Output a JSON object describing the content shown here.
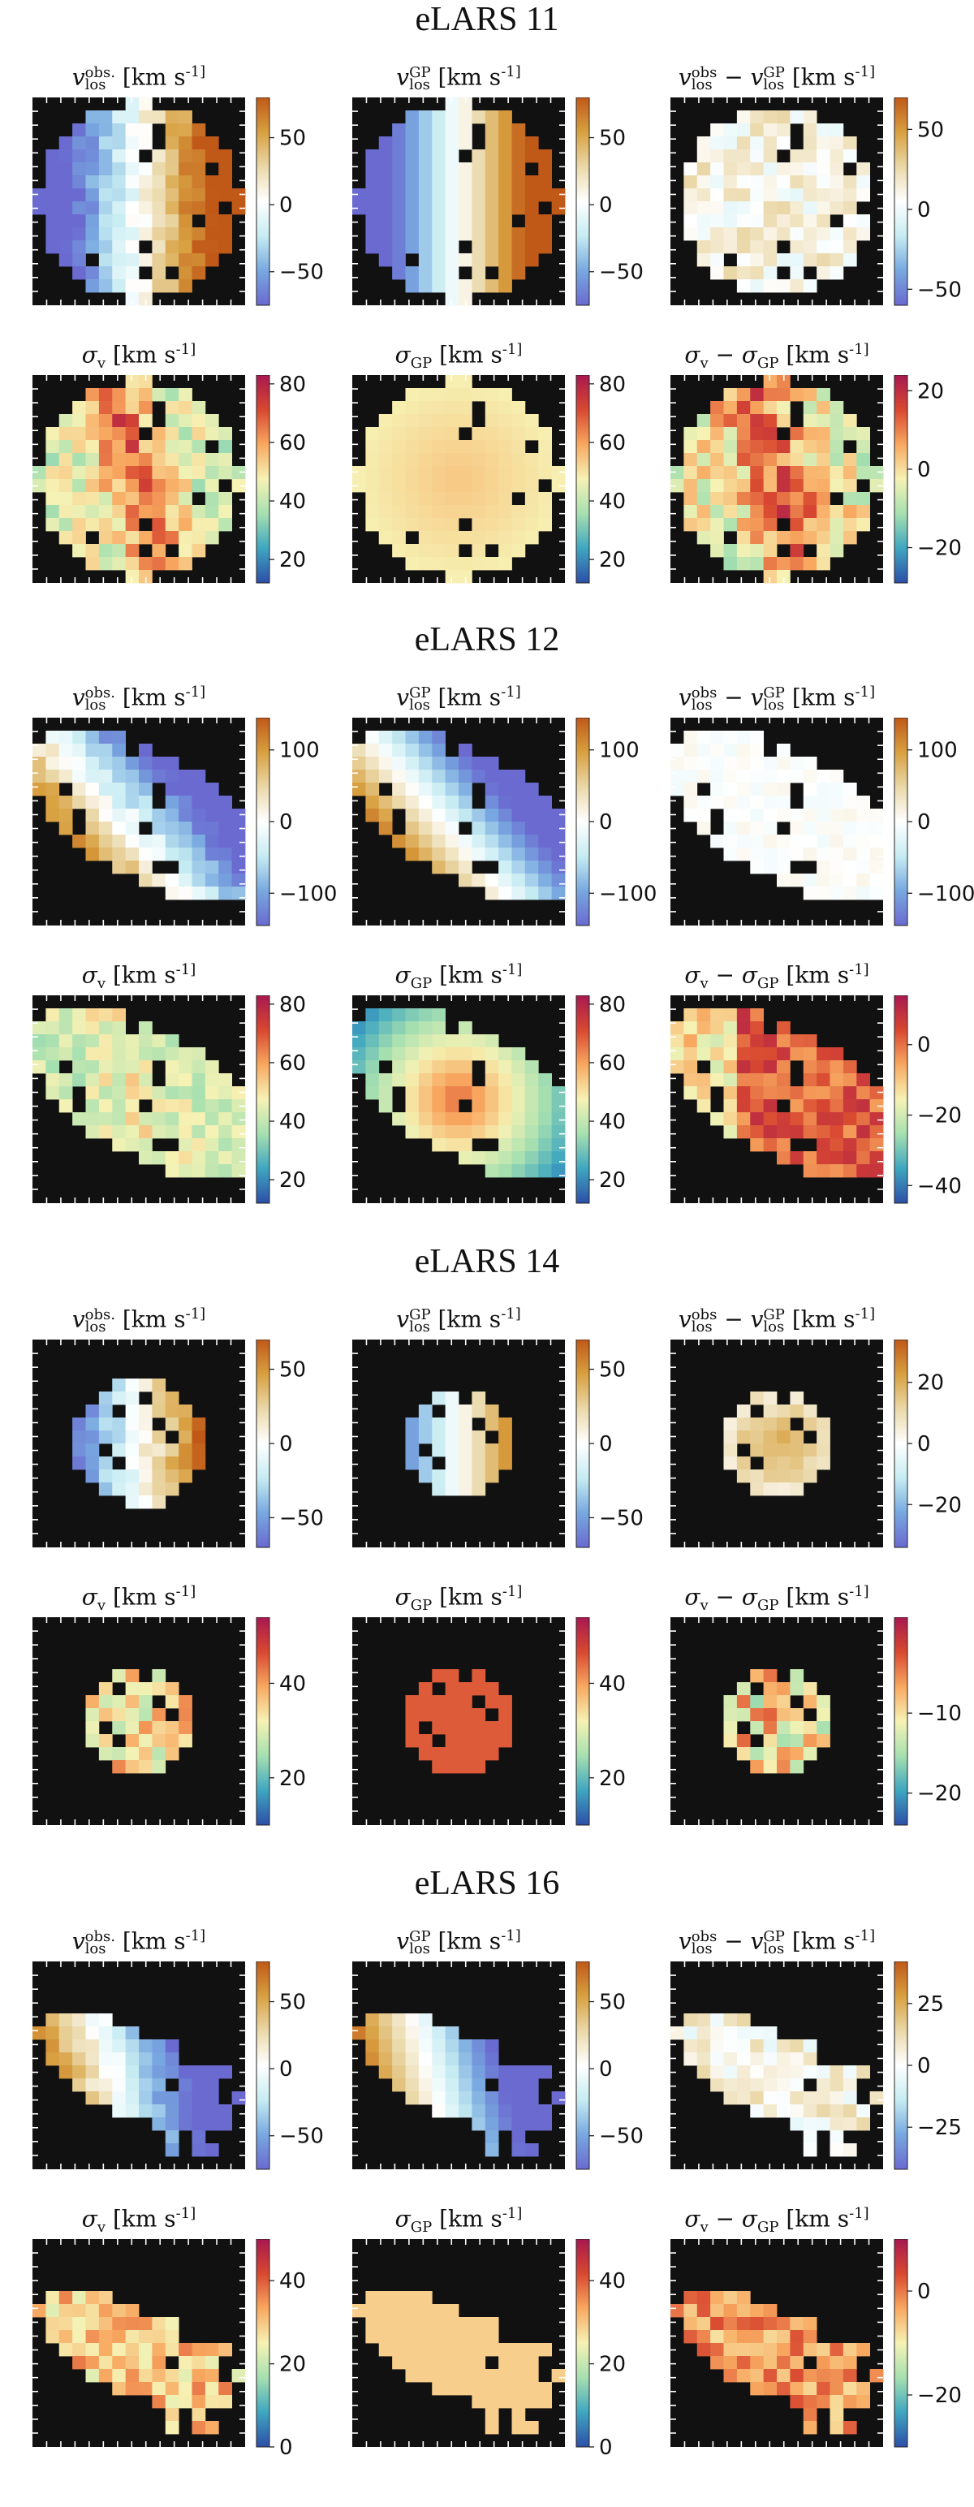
{
  "figure": {
    "colormaps": {
      "velocity": [
        "#6a6ad0",
        "#78a8e0",
        "#c6ecf2",
        "#ffffff",
        "#ead8a8",
        "#d8a040",
        "#c05818"
      ],
      "dispersion": [
        "#2c4fa8",
        "#3fa6c0",
        "#a6e0b0",
        "#f6f2b4",
        "#f8a860",
        "#d84830",
        "#a81850"
      ]
    },
    "groups": [
      {
        "title": "eLARS 11",
        "panels": [
          {
            "title": "v_los^obs. [km s^-1]",
            "cmap": "velocity",
            "ticks": [
              "50",
              "0",
              "−50"
            ],
            "tick_values": [
              50,
              0,
              -50
            ],
            "range": [
              -75,
              80
            ],
            "shape": "elars11_vel"
          },
          {
            "title": "v_los^GP [km s^-1]",
            "cmap": "velocity",
            "ticks": [
              "50",
              "0",
              "−50"
            ],
            "tick_values": [
              50,
              0,
              -50
            ],
            "range": [
              -75,
              80
            ],
            "shape": "elars11_vel"
          },
          {
            "title": "v_los^obs − v_los^GP [km s^-1]",
            "cmap": "velocity",
            "ticks": [
              "50",
              "0",
              "−50"
            ],
            "tick_values": [
              50,
              0,
              -50
            ],
            "range": [
              -60,
              70
            ],
            "shape": "elars11_res"
          },
          {
            "title": "σ_v [km s^-1]",
            "cmap": "dispersion",
            "ticks": [
              "80",
              "60",
              "40",
              "20"
            ],
            "tick_values": [
              80,
              60,
              40,
              20
            ],
            "range": [
              12,
              83
            ],
            "shape": "elars11_sig"
          },
          {
            "title": "σ_GP [km s^-1]",
            "cmap": "dispersion",
            "ticks": [
              "80",
              "60",
              "40",
              "20"
            ],
            "tick_values": [
              80,
              60,
              40,
              20
            ],
            "range": [
              12,
              83
            ],
            "shape": "elars11_sig"
          },
          {
            "title": "σ_v − σ_GP [km s^-1]",
            "cmap": "dispersion",
            "ticks": [
              "20",
              "0",
              "−20"
            ],
            "tick_values": [
              20,
              0,
              -20
            ],
            "range": [
              -29,
              24
            ],
            "shape": "elars11_sig"
          }
        ]
      },
      {
        "title": "eLARS 12",
        "panels": [
          {
            "title": "v_los^obs. [km s^-1]",
            "cmap": "velocity",
            "ticks": [
              "100",
              "0",
              "−100"
            ],
            "tick_values": [
              100,
              0,
              -100
            ],
            "range": [
              -145,
              145
            ],
            "shape": "elars12"
          },
          {
            "title": "v_los^GP [km s^-1]",
            "cmap": "velocity",
            "ticks": [
              "100",
              "0",
              "−100"
            ],
            "tick_values": [
              100,
              0,
              -100
            ],
            "range": [
              -145,
              145
            ],
            "shape": "elars12"
          },
          {
            "title": "v_los^obs − v_los^GP [km s^-1]",
            "cmap": "velocity",
            "ticks": [
              "100",
              "0",
              "−100"
            ],
            "tick_values": [
              100,
              0,
              -100
            ],
            "range": [
              -145,
              145
            ],
            "shape": "elars12"
          },
          {
            "title": "σ_v [km s^-1]",
            "cmap": "dispersion",
            "ticks": [
              "80",
              "60",
              "40",
              "20"
            ],
            "tick_values": [
              80,
              60,
              40,
              20
            ],
            "range": [
              12,
              83
            ],
            "shape": "elars12"
          },
          {
            "title": "σ_GP [km s^-1]",
            "cmap": "dispersion",
            "ticks": [
              "80",
              "60",
              "40",
              "20"
            ],
            "tick_values": [
              80,
              60,
              40,
              20
            ],
            "range": [
              12,
              83
            ],
            "shape": "elars12"
          },
          {
            "title": "σ_v − σ_GP [km s^-1]",
            "cmap": "dispersion",
            "ticks": [
              "0",
              "−20",
              "−40"
            ],
            "tick_values": [
              0,
              -20,
              -40
            ],
            "range": [
              -45,
              14
            ],
            "shape": "elars12"
          }
        ]
      },
      {
        "title": "eLARS 14",
        "panels": [
          {
            "title": "v_los^obs. [km s^-1]",
            "cmap": "velocity",
            "ticks": [
              "50",
              "0",
              "−50"
            ],
            "tick_values": [
              50,
              0,
              -50
            ],
            "range": [
              -70,
              70
            ],
            "shape": "elars14_big"
          },
          {
            "title": "v_los^GP [km s^-1]",
            "cmap": "velocity",
            "ticks": [
              "50",
              "0",
              "−50"
            ],
            "tick_values": [
              50,
              0,
              -50
            ],
            "range": [
              -70,
              70
            ],
            "shape": "elars14_small"
          },
          {
            "title": "v_los^obs − v_los^GP [km s^-1]",
            "cmap": "velocity",
            "ticks": [
              "20",
              "0",
              "−20"
            ],
            "tick_values": [
              20,
              0,
              -20
            ],
            "range": [
              -34,
              34
            ],
            "shape": "elars14_small"
          },
          {
            "title": "σ_v [km s^-1]",
            "cmap": "dispersion",
            "ticks": [
              "40",
              "20"
            ],
            "tick_values": [
              40,
              20
            ],
            "range": [
              10,
              54
            ],
            "shape": "elars14_small"
          },
          {
            "title": "σ_GP [km s^-1]",
            "cmap": "dispersion",
            "ticks": [
              "40",
              "20"
            ],
            "tick_values": [
              40,
              20
            ],
            "range": [
              10,
              54
            ],
            "shape": "elars14_small"
          },
          {
            "title": "σ_v − σ_GP [km s^-1]",
            "cmap": "dispersion",
            "ticks": [
              "−10",
              "−20"
            ],
            "tick_values": [
              -10,
              -20
            ],
            "range": [
              -24,
              2
            ],
            "shape": "elars14_small"
          }
        ]
      },
      {
        "title": "eLARS 16",
        "panels": [
          {
            "title": "v_los^obs. [km s^-1]",
            "cmap": "velocity",
            "ticks": [
              "50",
              "0",
              "−50"
            ],
            "tick_values": [
              50,
              0,
              -50
            ],
            "range": [
              -75,
              80
            ],
            "shape": "elars16"
          },
          {
            "title": "v_los^GP [km s^-1]",
            "cmap": "velocity",
            "ticks": [
              "50",
              "0",
              "−50"
            ],
            "tick_values": [
              50,
              0,
              -50
            ],
            "range": [
              -75,
              80
            ],
            "shape": "elars16"
          },
          {
            "title": "v_los^obs − v_los^GP [km s^-1]",
            "cmap": "velocity",
            "ticks": [
              "25",
              "0",
              "−25"
            ],
            "tick_values": [
              25,
              0,
              -25
            ],
            "range": [
              -42,
              42
            ],
            "shape": "elars16"
          },
          {
            "title": "σ_v [km s^-1]",
            "cmap": "dispersion",
            "ticks": [
              "40",
              "20",
              "0"
            ],
            "tick_values": [
              40,
              20,
              0
            ],
            "range": [
              0,
              50
            ],
            "shape": "elars16"
          },
          {
            "title": "σ_GP [km s^-1]",
            "cmap": "dispersion",
            "ticks": [
              "40",
              "20",
              "0"
            ],
            "tick_values": [
              40,
              20,
              0
            ],
            "range": [
              0,
              50
            ],
            "shape": "elars16"
          },
          {
            "title": "σ_v − σ_GP [km s^-1]",
            "cmap": "dispersion",
            "ticks": [
              "0",
              "−20"
            ],
            "tick_values": [
              0,
              -20
            ],
            "range": [
              -30,
              10
            ],
            "shape": "elars16"
          }
        ]
      }
    ]
  },
  "chart_data": {
    "type": "heatmap",
    "title": "",
    "groups": [
      "eLARS 11",
      "eLARS 12",
      "eLARS 14",
      "eLARS 16"
    ],
    "panel_titles": [
      "v_los^obs. [km s^-1]",
      "v_los^GP [km s^-1]",
      "v_los^obs − v_los^GP [km s^-1]",
      "σ_v [km s^-1]",
      "σ_GP [km s^-1]",
      "σ_v − σ_GP [km s^-1]"
    ],
    "colorbar_ticks": {
      "eLARS 11": [
        [
          50,
          0,
          -50
        ],
        [
          50,
          0,
          -50
        ],
        [
          50,
          0,
          -50
        ],
        [
          80,
          60,
          40,
          20
        ],
        [
          80,
          60,
          40,
          20
        ],
        [
          20,
          0,
          -20
        ]
      ],
      "eLARS 12": [
        [
          100,
          0,
          -100
        ],
        [
          100,
          0,
          -100
        ],
        [
          100,
          0,
          -100
        ],
        [
          80,
          60,
          40,
          20
        ],
        [
          80,
          60,
          40,
          20
        ],
        [
          0,
          -20,
          -40
        ]
      ],
      "eLARS 14": [
        [
          50,
          0,
          -50
        ],
        [
          50,
          0,
          -50
        ],
        [
          20,
          0,
          -20
        ],
        [
          40,
          20
        ],
        [
          40,
          20
        ],
        [
          -10,
          -20
        ]
      ],
      "eLARS 16": [
        [
          50,
          0,
          -50
        ],
        [
          50,
          0,
          -50
        ],
        [
          25,
          0,
          -25
        ],
        [
          40,
          20,
          0
        ],
        [
          40,
          20,
          0
        ],
        [
          0,
          -20
        ]
      ]
    },
    "units": "km s^-1",
    "grid": false,
    "legend": "colorbar right of each panel"
  }
}
